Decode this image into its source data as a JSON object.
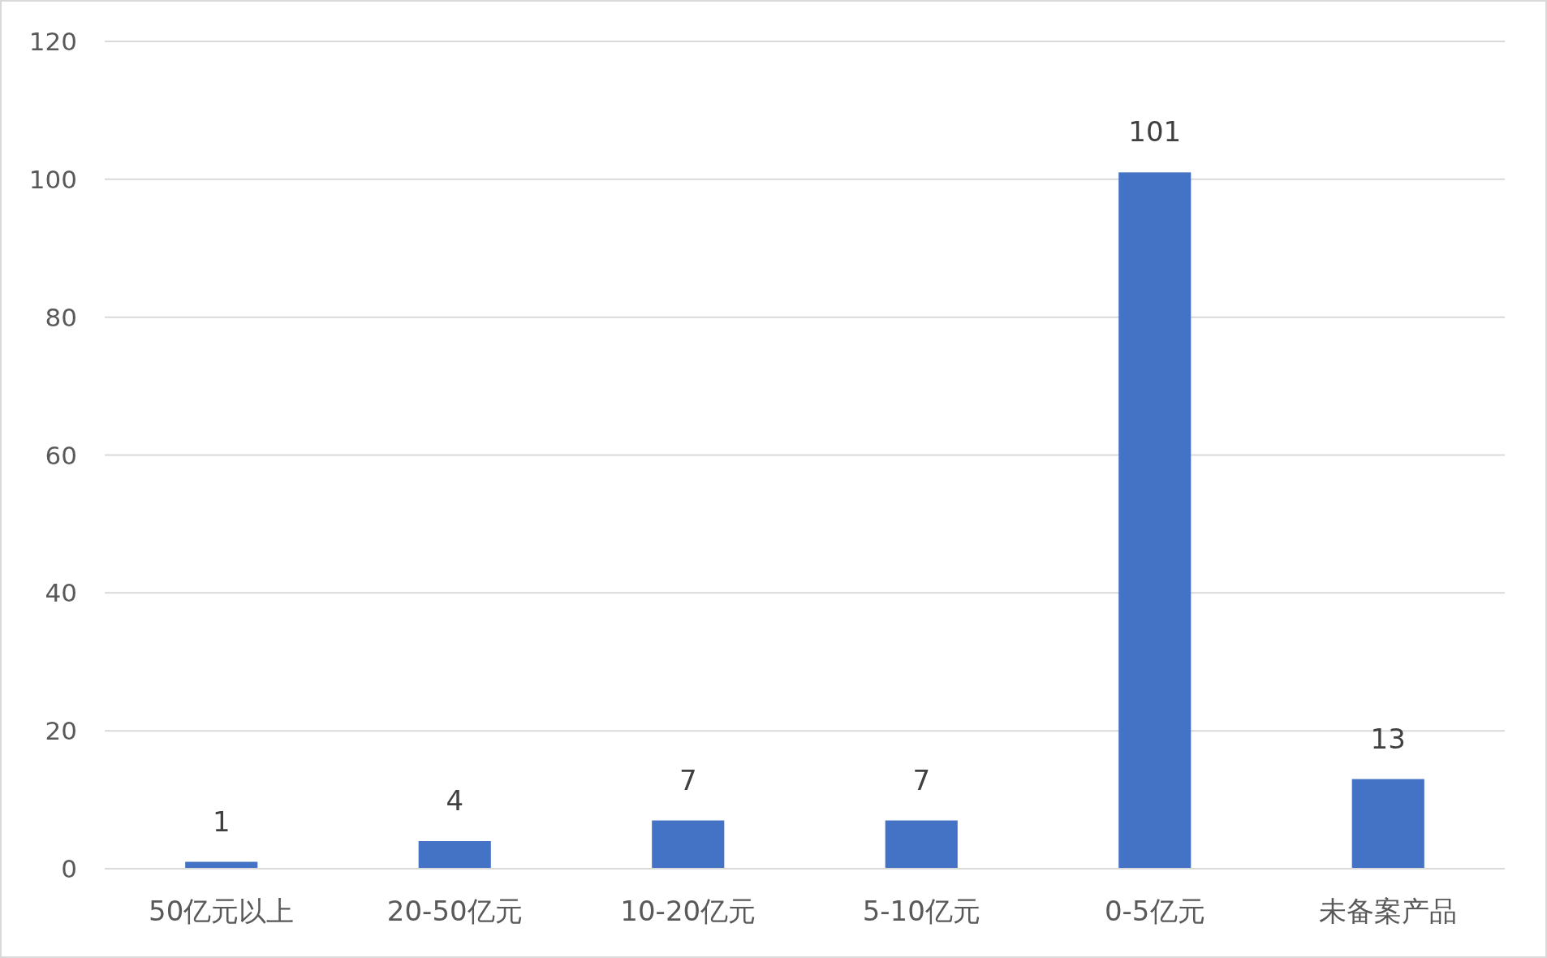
{
  "chart_data": {
    "type": "bar",
    "categories": [
      "50亿元以上",
      "20-50亿元",
      "10-20亿元",
      "5-10亿元",
      "0-5亿元",
      "未备案产品"
    ],
    "values": [
      1,
      4,
      7,
      7,
      101,
      13
    ],
    "color": "#4472c4",
    "ylim": [
      0,
      120
    ],
    "yticks": [
      0,
      20,
      40,
      60,
      80,
      100,
      120
    ],
    "grid": "y",
    "data_labels": true
  }
}
